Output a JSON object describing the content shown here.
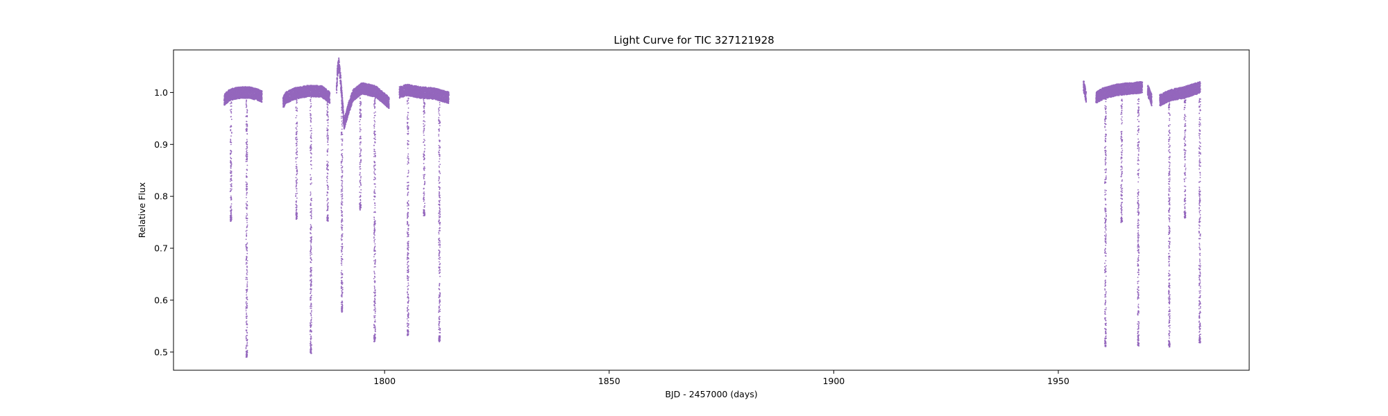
{
  "chart_data": {
    "type": "scatter",
    "title": "Light Curve for TIC 327121928",
    "xlabel": "BJD - 2457000 (days)",
    "ylabel": "Relative Flux",
    "xlim": [
      1753,
      1992.5
    ],
    "ylim": [
      0.465,
      1.082
    ],
    "xticks": [
      1800,
      1850,
      1900,
      1950
    ],
    "yticks": [
      0.5,
      0.6,
      0.7,
      0.8,
      0.9,
      1.0
    ],
    "ytick_labels": [
      "0.5",
      "0.6",
      "0.7",
      "0.8",
      "0.9",
      "1.0"
    ],
    "grid": false,
    "marker_color": "#9467bd",
    "series": [
      {
        "segments": [
          {
            "x": [
              1764.3,
              1764.8,
              1765.5,
              1766.5,
              1768,
              1770,
              1772
            ],
            "y": [
              0.985,
              0.99,
              0.995,
              0.998,
              1.0,
              1.0,
              0.995
            ]
          },
          {
            "x": [
              1772,
              1772.7
            ],
            "y": [
              0.995,
              0.992
            ]
          },
          {
            "x": [
              1777.4,
              1778,
              1780,
              1783,
              1786,
              1787.8
            ],
            "y": [
              0.98,
              0.99,
              0.998,
              1.003,
              1.002,
              0.99
            ]
          },
          {
            "x": [
              1789.3,
              1789.5,
              1789.8,
              1790.2,
              1790.5,
              1791,
              1792,
              1793,
              1795,
              1798,
              1801
            ],
            "y": [
              1.0,
              1.04,
              1.055,
              1.025,
              0.99,
              0.94,
              0.97,
              0.995,
              1.008,
              1.002,
              0.98
            ]
          },
          {
            "x": [
              1803.3,
              1805,
              1808,
              1811,
              1814.3
            ],
            "y": [
              1.0,
              1.005,
              1.0,
              0.998,
              0.99
            ]
          },
          {
            "x": [
              1955.6,
              1956.2
            ],
            "y": [
              1.015,
              0.99
            ]
          },
          {
            "x": [
              1958.4,
              1960,
              1963,
              1966,
              1968.7
            ],
            "y": [
              0.99,
              0.998,
              1.005,
              1.008,
              1.01
            ]
          },
          {
            "x": [
              1969.9,
              1970.8
            ],
            "y": [
              1.005,
              0.985
            ]
          },
          {
            "x": [
              1972.6,
              1975,
              1978,
              1981.6
            ],
            "y": [
              0.985,
              0.995,
              1.0,
              1.01
            ]
          }
        ],
        "dips": [
          {
            "x": 1765.8,
            "min": 0.752
          },
          {
            "x": 1769.3,
            "min": 0.49
          },
          {
            "x": 1780.4,
            "min": 0.756
          },
          {
            "x": 1783.6,
            "min": 0.497
          },
          {
            "x": 1787.3,
            "min": 0.752
          },
          {
            "x": 1790.5,
            "min": 0.577
          },
          {
            "x": 1794.6,
            "min": 0.774
          },
          {
            "x": 1797.8,
            "min": 0.52
          },
          {
            "x": 1805.2,
            "min": 0.532
          },
          {
            "x": 1808.8,
            "min": 0.762
          },
          {
            "x": 1812.2,
            "min": 0.52
          },
          {
            "x": 1960.5,
            "min": 0.51
          },
          {
            "x": 1964.1,
            "min": 0.75
          },
          {
            "x": 1967.8,
            "min": 0.512
          },
          {
            "x": 1974.7,
            "min": 0.51
          },
          {
            "x": 1978.2,
            "min": 0.758
          },
          {
            "x": 1981.5,
            "min": 0.518
          }
        ]
      }
    ]
  }
}
